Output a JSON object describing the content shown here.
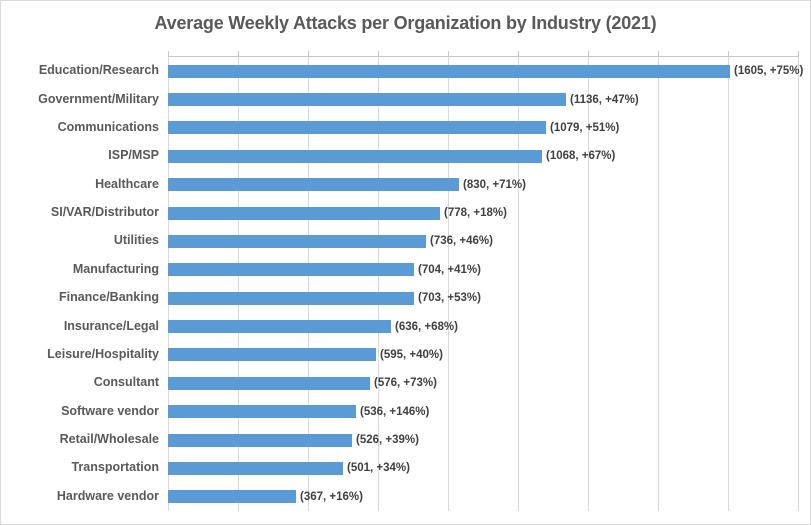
{
  "chart_data": {
    "type": "bar",
    "orientation": "horizontal",
    "title": "Average Weekly Attacks per Organization by Industry (2021)",
    "categories": [
      "Education/Research",
      "Government/Military",
      "Communications",
      "ISP/MSP",
      "Healthcare",
      "SI/VAR/Distributor",
      "Utilities",
      "Manufacturing",
      "Finance/Banking",
      "Insurance/Legal",
      "Leisure/Hospitality",
      "Consultant",
      "Software vendor",
      "Retail/Wholesale",
      "Transportation",
      "Hardware vendor"
    ],
    "values": [
      1605,
      1136,
      1079,
      1068,
      830,
      778,
      736,
      704,
      703,
      636,
      595,
      576,
      536,
      526,
      501,
      367
    ],
    "growth_pct": [
      75,
      47,
      51,
      67,
      71,
      18,
      46,
      41,
      53,
      68,
      40,
      73,
      146,
      39,
      34,
      16
    ],
    "data_labels": [
      "(1605, +75%)",
      "(1136, +47%)",
      "(1079, +51%)",
      "(1068, +67%)",
      "(830, +71%)",
      "(778, +18%)",
      "(736, +46%)",
      "(704, +41%)",
      "(703, +53%)",
      "(636, +68%)",
      "(595, +40%)",
      "(576, +73%)",
      "(536, +146%)",
      "(526, +39%)",
      "(501, +34%)",
      "(367, +16%)"
    ],
    "xlabel": "",
    "ylabel": "",
    "xlim": [
      0,
      1800
    ],
    "x_major_unit": 200,
    "x_tick_labels_visible": false,
    "gridlines": "vertical",
    "legend": "none",
    "colors": {
      "bar": "#5B9BD5",
      "gridline": "#D9D9D9",
      "axis_line": "#C6C6C6",
      "title_text": "#595959",
      "category_text": "#595959",
      "data_label_text": "#404040",
      "background": "#FFFFFF",
      "border": "#D9D9D9"
    }
  }
}
